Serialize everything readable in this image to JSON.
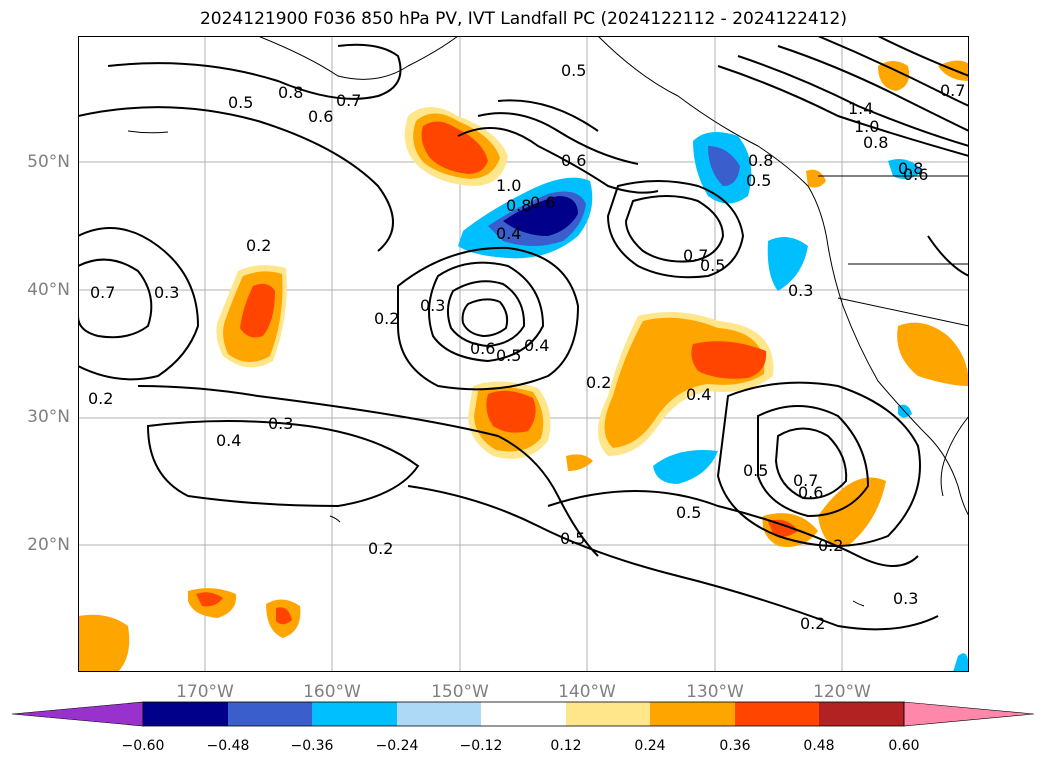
{
  "title": "2024121900 F036 850 hPa PV, IVT Landfall PC (2024122112 - 2024122412)",
  "lat_labels": [
    "50°N",
    "40°N",
    "30°N",
    "20°N"
  ],
  "lon_labels": [
    "170°W",
    "160°W",
    "150°W",
    "140°W",
    "130°W",
    "120°W"
  ],
  "contour_labels": [
    "0.5",
    "0.8",
    "0.7",
    "0.6",
    "0.5",
    "1.4",
    "1.0",
    "0.8",
    "0.6",
    "0.6",
    "0.8",
    "0.5",
    "0.4",
    "1.0",
    "0.8",
    "0.6",
    "0.2",
    "0.7",
    "0.3",
    "0.7",
    "0.5",
    "0.2",
    "0.3",
    "0.6",
    "0.5",
    "0.4",
    "0.2",
    "0.3",
    "0.4",
    "0.4",
    "0.2",
    "0.3",
    "0.5",
    "0.6",
    "0.7",
    "0.5",
    "0.5",
    "0.2",
    "0.2",
    "0.3",
    "0.2",
    "0.8",
    "0.7"
  ],
  "colorbar": {
    "ticks": [
      "−0.60",
      "−0.48",
      "−0.36",
      "−0.24",
      "−0.12",
      "0.12",
      "0.24",
      "0.36",
      "0.48",
      "0.60"
    ],
    "colors": [
      "#9932cc",
      "#00008b",
      "#3a5fcd",
      "#00bfff",
      "#add8f6",
      "#ffffff",
      "#ffe68a",
      "#ffa500",
      "#ff4500",
      "#b22222",
      "#ff88aa"
    ]
  }
}
